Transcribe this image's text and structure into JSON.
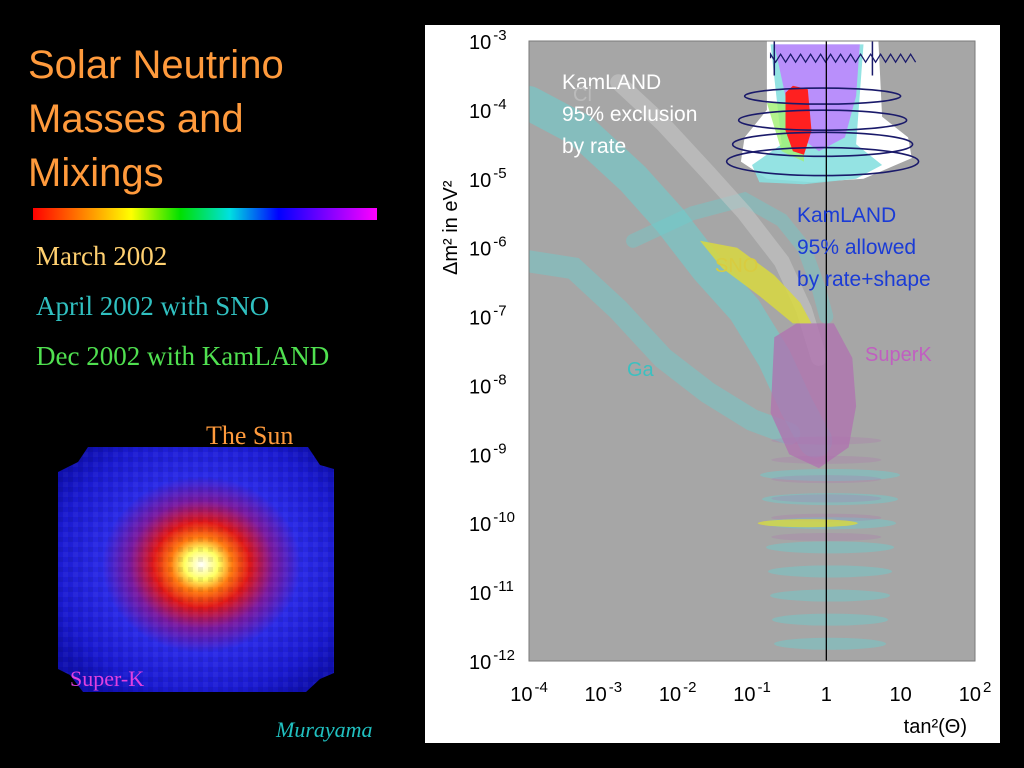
{
  "slide": {
    "title_lines": [
      "Solar Neutrino",
      "Masses and",
      "Mixings"
    ],
    "timeline": [
      {
        "label": "March 2002",
        "color": "#ffd070"
      },
      {
        "label": "April 2002 with SNO",
        "color": "#30c0c0"
      },
      {
        "label": "Dec 2002 with KamLAND",
        "color": "#50e050"
      }
    ],
    "sun_label": "The Sun",
    "image_caption": "Super-K",
    "credit": "Murayama"
  },
  "chart_data": {
    "type": "contour",
    "xlabel": "tan²(Θ)",
    "ylabel": "Δm² in eV²",
    "x_scale": "log",
    "y_scale": "log",
    "xlim": [
      0.0001,
      100
    ],
    "ylim": [
      1e-12,
      0.001
    ],
    "x_ticks": [
      {
        "value": 0.0001,
        "base": "10",
        "exp": "-4"
      },
      {
        "value": 0.001,
        "base": "10",
        "exp": "-3"
      },
      {
        "value": 0.01,
        "base": "10",
        "exp": "-2"
      },
      {
        "value": 0.1,
        "base": "10",
        "exp": "-1"
      },
      {
        "value": 1,
        "base": "1",
        "exp": ""
      },
      {
        "value": 10,
        "base": "10",
        "exp": ""
      },
      {
        "value": 100,
        "base": "10",
        "exp": "2"
      }
    ],
    "y_ticks": [
      {
        "value": 0.001,
        "base": "10",
        "exp": "-3"
      },
      {
        "value": 0.0001,
        "base": "10",
        "exp": "-4"
      },
      {
        "value": 1e-05,
        "base": "10",
        "exp": "-5"
      },
      {
        "value": 1e-06,
        "base": "10",
        "exp": "-6"
      },
      {
        "value": 1e-07,
        "base": "10",
        "exp": "-7"
      },
      {
        "value": 1e-08,
        "base": "10",
        "exp": "-8"
      },
      {
        "value": 1e-09,
        "base": "10",
        "exp": "-9"
      },
      {
        "value": 1e-10,
        "base": "10",
        "exp": "-10"
      },
      {
        "value": 1e-11,
        "base": "10",
        "exp": "-11"
      },
      {
        "value": 1e-12,
        "base": "10",
        "exp": "-12"
      }
    ],
    "reference_line_x": 1,
    "annotations": [
      {
        "lines": [
          "KamLAND",
          "95% exclusion",
          "by rate"
        ],
        "color": "#ffffff"
      },
      {
        "lines": [
          "KamLAND",
          "95% allowed",
          "by rate+shape"
        ],
        "color": "#1a3bd6"
      },
      {
        "lines": [
          "Cl"
        ],
        "color": "#bbbbbb"
      },
      {
        "lines": [
          "SNO"
        ],
        "color": "#d8cc40"
      },
      {
        "lines": [
          "Ga"
        ],
        "color": "#3cc0c0"
      },
      {
        "lines": [
          "SuperK"
        ],
        "color": "#c060c0"
      }
    ],
    "colors": {
      "excluded": "#a6a6a6",
      "allowed_kamland": "#ff2020",
      "sno": "#d8d840",
      "ga": "#6acfcf",
      "superk": "#b070b0",
      "cl": "#c8c8c8"
    }
  }
}
